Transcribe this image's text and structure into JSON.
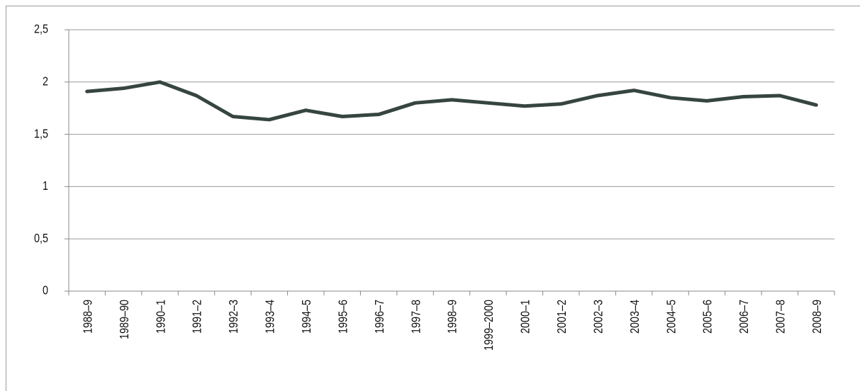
{
  "chart_data": {
    "type": "line",
    "categories": [
      "1988–9",
      "1989–90",
      "1990–1",
      "1991–2",
      "1992–3",
      "1993–4",
      "1994–5",
      "1995–6",
      "1996–7",
      "1997–8",
      "1998–9",
      "1999–2000",
      "2000–1",
      "2001–2",
      "2002–3",
      "2003–4",
      "2004–5",
      "2005–6",
      "2006–7",
      "2007–8",
      "2008–9"
    ],
    "values": [
      1.91,
      1.94,
      2.0,
      1.87,
      1.67,
      1.64,
      1.73,
      1.67,
      1.69,
      1.8,
      1.83,
      1.8,
      1.77,
      1.79,
      1.87,
      1.92,
      1.85,
      1.82,
      1.86,
      1.87,
      1.78
    ],
    "color": "#36453f",
    "ylim": [
      0,
      2.5
    ],
    "yticks": [
      0,
      {
        "value": 0.5,
        "label": "0,5"
      },
      1,
      {
        "value": 1.5,
        "label": "1,5"
      },
      2,
      {
        "value": 2.5,
        "label": "2,5"
      }
    ],
    "grid": true
  }
}
